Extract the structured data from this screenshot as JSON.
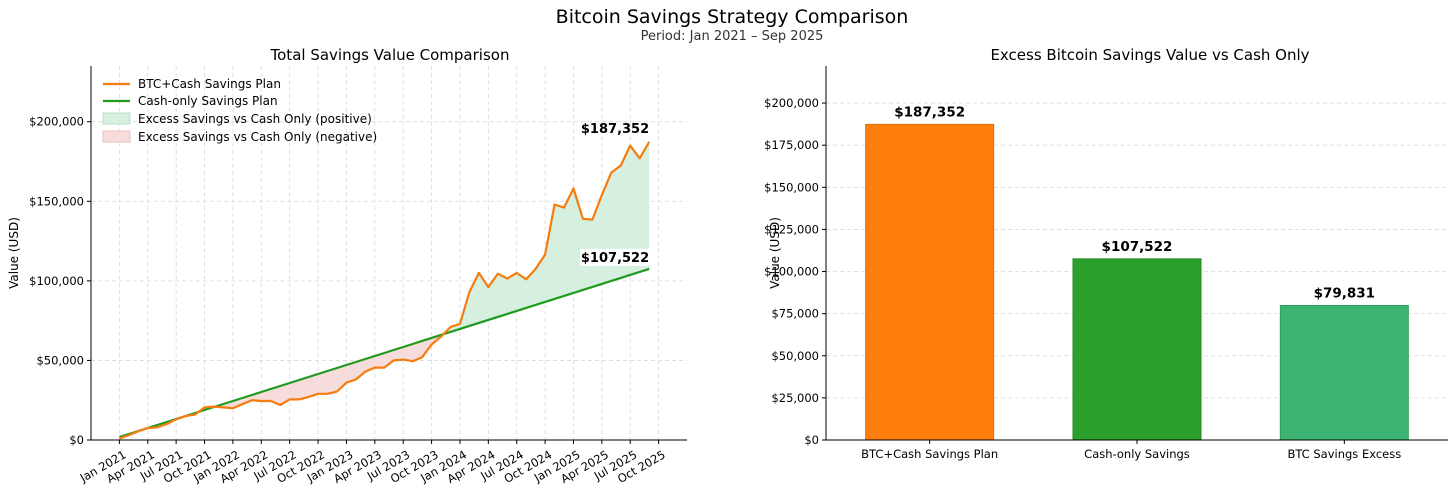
{
  "figure": {
    "title": "Bitcoin Savings Strategy Comparison",
    "subtitle": "Period: Jan 2021 – Sep 2025"
  },
  "colors": {
    "btc_line": "#f57c0e",
    "cash_line": "#1f9a1f",
    "fill_positive": "#d5f0df",
    "fill_negative": "#f7dcdc",
    "bar_btc": "#ff7f0e",
    "bar_cash": "#2ca02c",
    "bar_excess": "#3cb371"
  },
  "chart_data": [
    {
      "type": "line",
      "title": "Total Savings Value Comparison",
      "ylabel": "Value (USD)",
      "xlabel": "",
      "ylim": [
        0,
        235000
      ],
      "yticks": [
        0,
        50000,
        100000,
        150000,
        200000
      ],
      "ytick_labels": [
        "$0",
        "$50,000",
        "$100,000",
        "$150,000",
        "$200,000"
      ],
      "xtick_labels": [
        "Jan 2021",
        "Apr 2021",
        "Jul 2021",
        "Oct 2021",
        "Jan 2022",
        "Apr 2022",
        "Jul 2022",
        "Oct 2022",
        "Jan 2023",
        "Apr 2023",
        "Jul 2023",
        "Oct 2023",
        "Jan 2024",
        "Apr 2024",
        "Jul 2024",
        "Oct 2024",
        "Jan 2025",
        "Apr 2025",
        "Jul 2025",
        "Oct 2025"
      ],
      "xtick_months": [
        0,
        3,
        6,
        9,
        12,
        15,
        18,
        21,
        24,
        27,
        30,
        33,
        36,
        39,
        42,
        45,
        48,
        51,
        54,
        57
      ],
      "x_range_months": [
        -3,
        60
      ],
      "month_index_start": "Jan 2021",
      "legend": [
        "BTC+Cash Savings Plan",
        "Cash-only Savings Plan",
        "Excess Savings vs Cash Only (positive)",
        "Excess Savings vs Cash Only (negative)"
      ],
      "legend_position": "upper-left",
      "series": [
        {
          "name": "BTC+Cash Savings Plan",
          "values": [
            1000,
            3000,
            5500,
            7500,
            8000,
            10000,
            13000,
            15000,
            16000,
            20500,
            21000,
            20500,
            20000,
            22500,
            25000,
            24500,
            24500,
            22000,
            25500,
            25500,
            27000,
            29000,
            29000,
            30500,
            36000,
            38000,
            43000,
            45500,
            45500,
            50000,
            50500,
            49500,
            52000,
            60000,
            65000,
            71000,
            73000,
            93000,
            105000,
            96000,
            104500,
            101500,
            105000,
            101000,
            107500,
            116500,
            148000,
            146000,
            158000,
            139000,
            138500,
            154000,
            168000,
            172500,
            185000,
            177000,
            187352
          ]
        },
        {
          "name": "Cash-only Savings Plan",
          "values": [
            1886,
            3772,
            5658,
            7544,
            9430,
            11316,
            13202,
            15088,
            16974,
            18860,
            20746,
            22632,
            24518,
            26404,
            28290,
            30176,
            32062,
            33948,
            35834,
            37720,
            39606,
            41492,
            43378,
            45264,
            47150,
            49036,
            50922,
            52808,
            54694,
            56580,
            58466,
            60352,
            62238,
            64124,
            66010,
            67896,
            69782,
            71668,
            73554,
            75440,
            77326,
            79212,
            81098,
            82984,
            84870,
            86756,
            88642,
            90528,
            92414,
            94300,
            96186,
            98072,
            99958,
            101844,
            103730,
            105616,
            107522
          ]
        }
      ],
      "annotations": [
        {
          "text": "$187,352",
          "value": 187352
        },
        {
          "text": "$107,522",
          "value": 107522
        }
      ]
    },
    {
      "type": "bar",
      "title": "Excess Bitcoin Savings Value vs Cash Only",
      "ylabel": "Value (USD)",
      "xlabel": "",
      "ylim": [
        0,
        222000
      ],
      "yticks": [
        0,
        25000,
        50000,
        75000,
        100000,
        125000,
        150000,
        175000,
        200000
      ],
      "ytick_labels": [
        "$0",
        "$25,000",
        "$50,000",
        "$75,000",
        "$100,000",
        "$125,000",
        "$150,000",
        "$175,000",
        "$200,000"
      ],
      "categories": [
        "BTC+Cash Savings Plan",
        "Cash-only Savings",
        "BTC Savings Excess"
      ],
      "values": [
        187352,
        107522,
        79831
      ],
      "value_labels": [
        "$187,352",
        "$107,522",
        "$79,831"
      ]
    }
  ]
}
